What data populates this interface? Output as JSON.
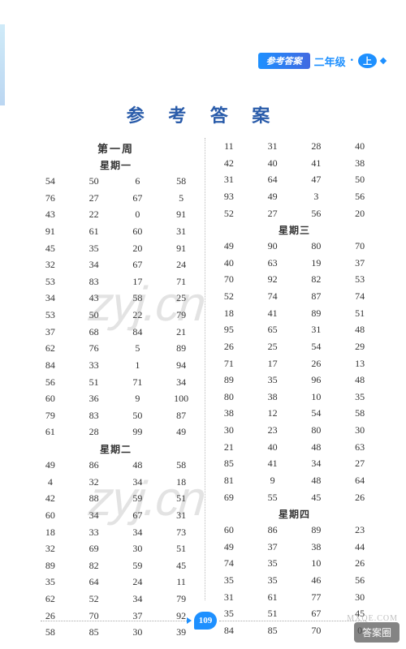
{
  "header": {
    "label": "参考答案",
    "grade": "二年级",
    "volume": "上"
  },
  "title": "参 考 答 案",
  "page_number": "109",
  "watermarks": {
    "wm1": "zyj.cn",
    "wm2": "zyj.cn"
  },
  "corner": {
    "badge": "答案圈",
    "url": "MXQE.COM"
  },
  "left_column": {
    "week_title": "第一周",
    "day1_title": "星期一",
    "day1_rows": [
      [
        "54",
        "50",
        "6",
        "58"
      ],
      [
        "76",
        "27",
        "67",
        "5"
      ],
      [
        "43",
        "22",
        "0",
        "91"
      ],
      [
        "91",
        "61",
        "60",
        "31"
      ],
      [
        "45",
        "35",
        "20",
        "91"
      ],
      [
        "32",
        "34",
        "67",
        "24"
      ],
      [
        "53",
        "83",
        "17",
        "71"
      ],
      [
        "34",
        "43",
        "58",
        "25"
      ],
      [
        "53",
        "50",
        "22",
        "79"
      ],
      [
        "37",
        "68",
        "84",
        "21"
      ],
      [
        "62",
        "76",
        "5",
        "89"
      ],
      [
        "84",
        "33",
        "1",
        "94"
      ],
      [
        "56",
        "51",
        "71",
        "34"
      ],
      [
        "60",
        "36",
        "9",
        "100"
      ],
      [
        "79",
        "83",
        "50",
        "87"
      ],
      [
        "61",
        "28",
        "99",
        "49"
      ]
    ],
    "day2_title": "星期二",
    "day2_rows": [
      [
        "49",
        "86",
        "48",
        "58"
      ],
      [
        "4",
        "32",
        "34",
        "18"
      ],
      [
        "42",
        "88",
        "59",
        "51"
      ],
      [
        "60",
        "34",
        "67",
        "31"
      ],
      [
        "18",
        "33",
        "34",
        "73"
      ],
      [
        "32",
        "69",
        "30",
        "51"
      ],
      [
        "89",
        "82",
        "59",
        "45"
      ],
      [
        "35",
        "64",
        "24",
        "11"
      ],
      [
        "62",
        "52",
        "34",
        "79"
      ],
      [
        "26",
        "70",
        "37",
        "92"
      ],
      [
        "58",
        "85",
        "30",
        "39"
      ]
    ]
  },
  "right_column": {
    "block1_rows": [
      [
        "11",
        "31",
        "28",
        "40"
      ],
      [
        "42",
        "40",
        "41",
        "38"
      ],
      [
        "31",
        "64",
        "47",
        "50"
      ],
      [
        "93",
        "49",
        "3",
        "56"
      ],
      [
        "52",
        "27",
        "56",
        "20"
      ]
    ],
    "day3_title": "星期三",
    "day3_rows": [
      [
        "49",
        "90",
        "80",
        "70"
      ],
      [
        "40",
        "63",
        "19",
        "37"
      ],
      [
        "70",
        "92",
        "82",
        "53"
      ],
      [
        "52",
        "74",
        "87",
        "74"
      ],
      [
        "18",
        "41",
        "89",
        "51"
      ],
      [
        "95",
        "65",
        "31",
        "48"
      ],
      [
        "26",
        "25",
        "54",
        "29"
      ],
      [
        "71",
        "17",
        "26",
        "13"
      ],
      [
        "89",
        "35",
        "96",
        "48"
      ],
      [
        "80",
        "38",
        "10",
        "35"
      ],
      [
        "38",
        "12",
        "54",
        "58"
      ],
      [
        "30",
        "23",
        "80",
        "30"
      ],
      [
        "21",
        "40",
        "48",
        "63"
      ],
      [
        "85",
        "41",
        "34",
        "27"
      ],
      [
        "81",
        "9",
        "48",
        "64"
      ],
      [
        "69",
        "55",
        "45",
        "26"
      ]
    ],
    "day4_title": "星期四",
    "day4_rows": [
      [
        "60",
        "86",
        "89",
        "23"
      ],
      [
        "49",
        "37",
        "38",
        "44"
      ],
      [
        "74",
        "35",
        "10",
        "26"
      ],
      [
        "35",
        "35",
        "46",
        "56"
      ],
      [
        "31",
        "61",
        "77",
        "30"
      ],
      [
        "35",
        "51",
        "67",
        "45"
      ],
      [
        "84",
        "85",
        "70",
        "0"
      ]
    ]
  },
  "styling": {
    "title_color": "#2a5caa",
    "accent_color": "#1e90ff",
    "text_color": "#333333",
    "background": "#ffffff",
    "font_size_title": 22,
    "font_size_body": 12,
    "font_size_section": 13,
    "line_height": 1.72
  }
}
